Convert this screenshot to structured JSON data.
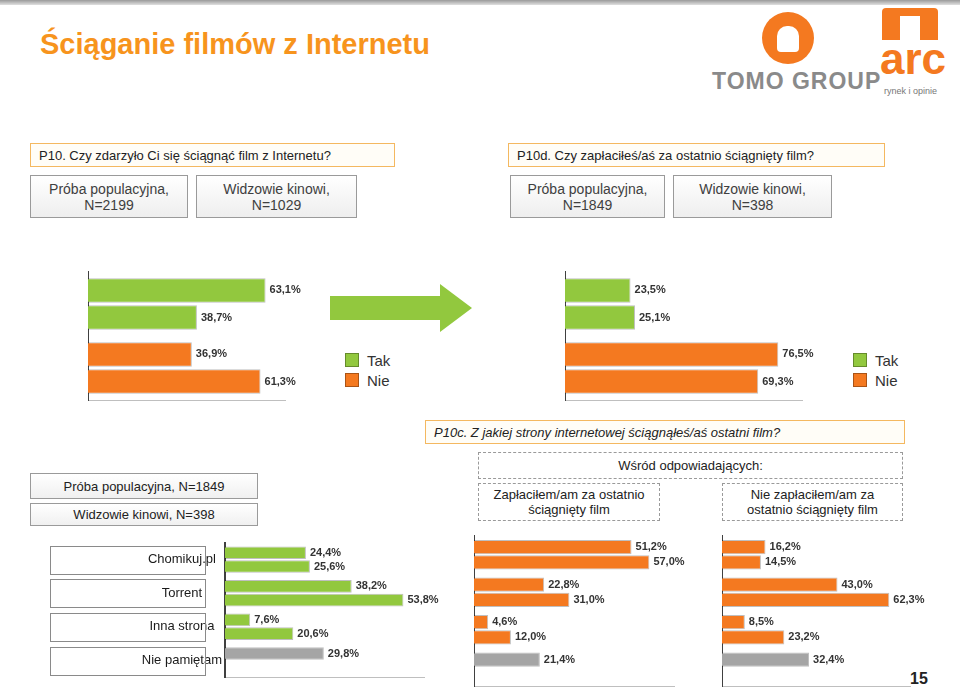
{
  "header": {
    "title": "Ściąganie filmów z Internetu",
    "logo_text": "TOMO GROUP",
    "logo_brand": "arc",
    "logo_tagline": "rynek i opinie",
    "page_number": "15"
  },
  "note": "Wśród odpowiadających:",
  "chart_data": [
    {
      "type": "bar",
      "orientation": "horizontal",
      "title": "P10. Czy zdarzyło Ci się ściągnąć film z Internetu?",
      "categories": [
        "Tak",
        "Nie"
      ],
      "colors": [
        "#92c83e",
        "#f47920"
      ],
      "series": [
        {
          "name": "Próba populacyjna, N=2199",
          "values": [
            63.1,
            36.9
          ],
          "value_labels": [
            "63,1%",
            "36,9%"
          ]
        },
        {
          "name": "Widzowie kinowi, N=1029",
          "values": [
            38.7,
            61.3
          ],
          "value_labels": [
            "38,7%",
            "61,3%"
          ]
        }
      ],
      "xlim": [
        0,
        70
      ],
      "grid": false,
      "legend": "right",
      "data_labels": true,
      "tick_labels": false
    },
    {
      "type": "bar",
      "orientation": "horizontal",
      "title": "P10d. Czy zapłaciłeś/aś za ostatnio ściągnięty film?",
      "categories": [
        "Tak",
        "Nie"
      ],
      "colors": [
        "#92c83e",
        "#f47920"
      ],
      "series": [
        {
          "name": "Próba populacyjna, N=1849",
          "values": [
            23.5,
            76.5
          ],
          "value_labels": [
            "23,5%",
            "76,5%"
          ]
        },
        {
          "name": "Widzowie kinowi, N=398",
          "values": [
            25.1,
            69.3
          ],
          "value_labels": [
            "25,1%",
            "69,3%"
          ]
        }
      ],
      "xlim": [
        0,
        85
      ],
      "grid": false,
      "legend": "right",
      "data_labels": true,
      "tick_labels": false
    },
    {
      "type": "bar",
      "orientation": "horizontal",
      "title": "P10c. Z jakiej strony internetowej ściągnąłeś/aś ostatni film?",
      "categories": [
        "Chomikuj.pl",
        "Torrent",
        "Inna strona",
        "Nie pamiętam"
      ],
      "colors": [
        "#92c83e",
        "#92c83e",
        "#92c83e",
        "#a5a5a5"
      ],
      "series": [
        {
          "name": "Próba populacyjna, N=1849",
          "values": [
            24.4,
            38.2,
            7.6,
            29.8
          ],
          "value_labels": [
            "24,4%",
            "38,2%",
            "7,6%",
            "29,8%"
          ]
        },
        {
          "name": "Widzowie kinowi, N=398",
          "values": [
            25.6,
            53.8,
            20.6,
            null
          ],
          "value_labels": [
            "25,6%",
            "53,8%",
            "20,6%",
            null
          ]
        }
      ],
      "xlim": [
        0,
        60
      ],
      "grid": false,
      "data_labels": true,
      "tick_labels": "y"
    },
    {
      "type": "bar",
      "orientation": "horizontal",
      "title": "Zapłaciłem/am za ostatnio ściągnięty film",
      "categories": [
        null,
        null,
        null,
        null
      ],
      "colors": [
        "#f47920",
        "#f47920",
        "#f47920",
        "#a5a5a5"
      ],
      "series": [
        {
          "values": [
            51.2,
            22.8,
            4.6,
            21.4
          ],
          "value_labels": [
            "51,2%",
            "22,8%",
            "4,6%",
            "21,4%"
          ]
        },
        {
          "values": [
            57.0,
            31.0,
            12.0,
            null
          ],
          "value_labels": [
            "57,0%",
            "31,0%",
            "12,0%",
            null
          ]
        }
      ],
      "xlim": [
        0,
        65
      ],
      "grid": false,
      "data_labels": true,
      "tick_labels": false
    },
    {
      "type": "bar",
      "orientation": "horizontal",
      "title": "Nie zapłaciłem/am za ostatnio ściągnięty film",
      "categories": [
        null,
        null,
        null,
        null
      ],
      "colors": [
        "#f47920",
        "#f47920",
        "#f47920",
        "#a5a5a5"
      ],
      "series": [
        {
          "values": [
            16.2,
            43.0,
            8.5,
            32.4
          ],
          "value_labels": [
            "16,2%",
            "43,0%",
            "8,5%",
            "32,4%"
          ]
        },
        {
          "values": [
            14.5,
            62.3,
            23.2,
            null
          ],
          "value_labels": [
            "14,5%",
            "62,3%",
            "23,2%",
            null
          ]
        }
      ],
      "xlim": [
        0,
        70
      ],
      "grid": false,
      "data_labels": true,
      "tick_labels": false
    }
  ]
}
